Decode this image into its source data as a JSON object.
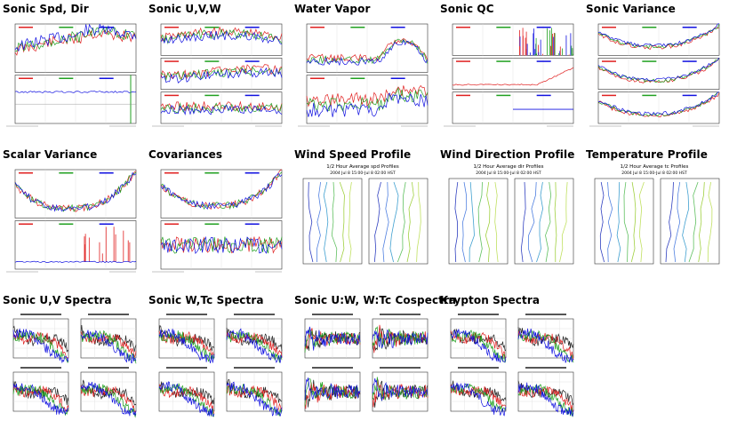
{
  "panels": [
    {
      "title": "Sonic Spd, Dir",
      "kind": "ts2"
    },
    {
      "title": "Sonic U,V,W",
      "kind": "ts3"
    },
    {
      "title": "Water Vapor",
      "kind": "ts2b"
    },
    {
      "title": "Sonic QC",
      "kind": "qc"
    },
    {
      "title": "Sonic Variance",
      "kind": "var3"
    },
    {
      "title": "Scalar Variance",
      "kind": "var2"
    },
    {
      "title": "Covariances",
      "kind": "cov2"
    },
    {
      "title": "Wind Speed Profile",
      "kind": "profile",
      "caption1": "1/2 Hour Average spd Profiles",
      "caption2": "2004 Jul 8 15:00-Jul 8 02:00 HST"
    },
    {
      "title": "Wind Direction Profile",
      "kind": "profile",
      "caption1": "1/2 Hour Average dir Profiles",
      "caption2": "2004 Jul 8 15:00-Jul 8 02:00 HST"
    },
    {
      "title": "Temperature Profile",
      "kind": "profile",
      "caption1": "1/2 Hour Average tc Profiles",
      "caption2": "2004 Jul 8 15:00-Jul 8 02:00 HST"
    },
    {
      "title": "Sonic U,V Spectra",
      "kind": "spectra"
    },
    {
      "title": "Sonic W,Tc Spectra",
      "kind": "spectra"
    },
    {
      "title": "Sonic U:W, W:Tc Cospectra",
      "kind": "cospectra"
    },
    {
      "title": "Krypton Spectra",
      "kind": "spectra"
    }
  ],
  "colors": {
    "red": "#e02020",
    "green": "#20a020",
    "blue": "#1010e0",
    "black": "#222222"
  }
}
